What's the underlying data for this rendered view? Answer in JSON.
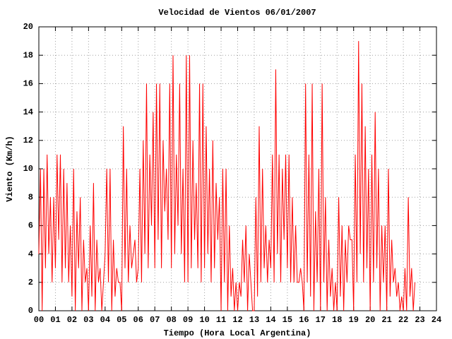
{
  "chart_data": {
    "type": "line",
    "title": "Velocidad de Vientos 06/01/2007",
    "x_label": "Tiempo (Hora Local Argentina)",
    "y_label": "Viento (Km/h)",
    "grid": true,
    "xlim": [
      0,
      24
    ],
    "ylim": [
      0,
      20
    ],
    "xticks": [
      {
        "value": 0,
        "label": "00"
      },
      {
        "value": 1,
        "label": "01"
      },
      {
        "value": 2,
        "label": "02"
      },
      {
        "value": 3,
        "label": "03"
      },
      {
        "value": 4,
        "label": "04"
      },
      {
        "value": 5,
        "label": "05"
      },
      {
        "value": 6,
        "label": "06"
      },
      {
        "value": 7,
        "label": "07"
      },
      {
        "value": 8,
        "label": "08"
      },
      {
        "value": 9,
        "label": "09"
      },
      10,
      11,
      12,
      13,
      14,
      15,
      16,
      17,
      18,
      19,
      20,
      21,
      22,
      23,
      24
    ],
    "yticks": [
      0,
      2,
      4,
      6,
      8,
      10,
      12,
      14,
      16,
      18,
      20
    ],
    "x": [
      0.0,
      0.1,
      0.2,
      0.3,
      0.4,
      0.5,
      0.6,
      0.7,
      0.8,
      0.9,
      1.0,
      1.1,
      1.2,
      1.3,
      1.4,
      1.5,
      1.6,
      1.7,
      1.8,
      1.9,
      2.0,
      2.1,
      2.2,
      2.3,
      2.4,
      2.5,
      2.6,
      2.7,
      2.8,
      2.9,
      3.0,
      3.1,
      3.2,
      3.3,
      3.4,
      3.5,
      3.6,
      3.7,
      3.8,
      3.9,
      4.0,
      4.1,
      4.2,
      4.3,
      4.4,
      4.5,
      4.6,
      4.7,
      4.8,
      4.9,
      5.0,
      5.1,
      5.2,
      5.3,
      5.4,
      5.5,
      5.6,
      5.7,
      5.8,
      5.9,
      6.0,
      6.1,
      6.2,
      6.3,
      6.4,
      6.5,
      6.6,
      6.7,
      6.8,
      6.9,
      7.0,
      7.1,
      7.2,
      7.3,
      7.4,
      7.5,
      7.6,
      7.7,
      7.8,
      7.9,
      8.0,
      8.1,
      8.2,
      8.3,
      8.4,
      8.5,
      8.6,
      8.7,
      8.8,
      8.9,
      9.0,
      9.1,
      9.2,
      9.3,
      9.4,
      9.5,
      9.6,
      9.7,
      9.8,
      9.9,
      10.0,
      10.1,
      10.2,
      10.3,
      10.4,
      10.5,
      10.6,
      10.7,
      10.8,
      10.9,
      11.0,
      11.1,
      11.2,
      11.3,
      11.4,
      11.5,
      11.6,
      11.7,
      11.8,
      11.9,
      12.0,
      12.1,
      12.2,
      12.3,
      12.4,
      12.5,
      12.6,
      12.7,
      12.8,
      12.9,
      13.0,
      13.1,
      13.2,
      13.3,
      13.4,
      13.5,
      13.6,
      13.7,
      13.8,
      13.9,
      14.0,
      14.1,
      14.2,
      14.3,
      14.4,
      14.5,
      14.6,
      14.7,
      14.8,
      14.9,
      15.0,
      15.1,
      15.2,
      15.3,
      15.4,
      15.5,
      15.6,
      15.7,
      15.8,
      15.9,
      16.0,
      16.1,
      16.2,
      16.3,
      16.4,
      16.5,
      16.6,
      16.7,
      16.8,
      16.9,
      17.0,
      17.1,
      17.2,
      17.3,
      17.4,
      17.5,
      17.6,
      17.7,
      17.8,
      17.9,
      18.0,
      18.1,
      18.2,
      18.3,
      18.4,
      18.5,
      18.6,
      18.7,
      18.8,
      18.9,
      19.0,
      19.1,
      19.2,
      19.3,
      19.4,
      19.5,
      19.6,
      19.7,
      19.8,
      19.9,
      20.0,
      20.1,
      20.2,
      20.3,
      20.4,
      20.5,
      20.6,
      20.7,
      20.8,
      20.9,
      21.0,
      21.1,
      21.2,
      21.3,
      21.4,
      21.5,
      21.6,
      21.7,
      21.8,
      21.9,
      22.0,
      22.1,
      22.2,
      22.3,
      22.4,
      22.5,
      22.6,
      22.7
    ],
    "series": [
      {
        "color": "#ff0000",
        "values": [
          4,
          10,
          0,
          10,
          3,
          11,
          4,
          8,
          2,
          8,
          3,
          11,
          5,
          11,
          2,
          10,
          3,
          9,
          2,
          6,
          1,
          10,
          0,
          7,
          3,
          8,
          0,
          5,
          2,
          3,
          0,
          6,
          1,
          9,
          0,
          5,
          2,
          3,
          0,
          2,
          4,
          10,
          2,
          10,
          0,
          5,
          1,
          3,
          2,
          2,
          0,
          13,
          3,
          10,
          2,
          6,
          3,
          4,
          5,
          2,
          3,
          10,
          2,
          12,
          4,
          16,
          3,
          11,
          6,
          14,
          3,
          16,
          5,
          16,
          3,
          12,
          7,
          10,
          5,
          16,
          3,
          18,
          4,
          11,
          6,
          16,
          4,
          10,
          2,
          18,
          2,
          18,
          3,
          12,
          5,
          9,
          3,
          16,
          2,
          16,
          3,
          13,
          4,
          10,
          2,
          12,
          3,
          9,
          5,
          8,
          0,
          10,
          2,
          10,
          0,
          6,
          1,
          3,
          0,
          2,
          0,
          2,
          1,
          5,
          2,
          6,
          0,
          4,
          2,
          0,
          0,
          8,
          1,
          13,
          2,
          10,
          3,
          6,
          2,
          5,
          3,
          11,
          2,
          17,
          4,
          11,
          2,
          10,
          5,
          11,
          3,
          11,
          2,
          8,
          2,
          6,
          2,
          2,
          3,
          2,
          0,
          16,
          2,
          11,
          1,
          16,
          0,
          7,
          2,
          10,
          0,
          16,
          2,
          8,
          0,
          5,
          1,
          3,
          0,
          2,
          0,
          8,
          1,
          6,
          0,
          5,
          2,
          6,
          5,
          5,
          0,
          11,
          2,
          19,
          4,
          16,
          2,
          13,
          3,
          10,
          0,
          11,
          2,
          14,
          3,
          10,
          0,
          6,
          2,
          6,
          0,
          10,
          1,
          5,
          2,
          3,
          1,
          2,
          0,
          1,
          0,
          3,
          0,
          8,
          1,
          3,
          0,
          2
        ]
      }
    ]
  }
}
